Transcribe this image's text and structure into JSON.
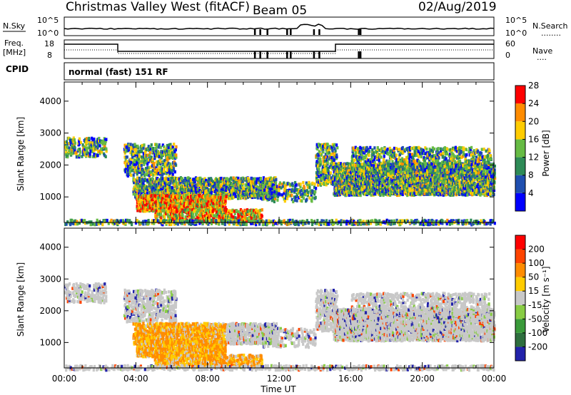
{
  "header": {
    "title": "Christmas Valley West (fitACF)",
    "beam": "Beam 05",
    "date": "02/Aug/2019"
  },
  "top_panel": {
    "left_label": "N.Sky",
    "left_ticks": [
      "10^5",
      "10^0"
    ],
    "right_ticks": [
      "10^5",
      "10^0"
    ],
    "right_label": "N.Search",
    "right_legend": "........"
  },
  "freq_panel": {
    "left_label_1": "Freq.",
    "left_label_2": "[MHz]",
    "left_ticks": [
      "18",
      "8"
    ],
    "right_ticks": [
      "60",
      "0"
    ],
    "right_label": "Nave",
    "right_legend": "....",
    "cpid_label": "CPID",
    "cpid_text": "normal (fast) 151 RF"
  },
  "chart_data": [
    {
      "type": "heatmap",
      "name": "power",
      "ylabel": "Slant Range [km]",
      "yticks": [
        1000,
        2000,
        3000,
        4000
      ],
      "ylim": [
        200,
        4600
      ],
      "colorbar_label": "Power [dB]",
      "colorbar_ticks": [
        4,
        8,
        12,
        16,
        20,
        24,
        28
      ],
      "colorbar_colors": [
        "#0000ff",
        "#1f4fb0",
        "#2e8b57",
        "#66bb44",
        "#ffcc00",
        "#ff8c00",
        "#ff0000"
      ],
      "xticks": [
        "00:00",
        "04:00",
        "08:00",
        "12:00",
        "16:00",
        "20:00",
        "00:00"
      ]
    },
    {
      "type": "heatmap",
      "name": "velocity",
      "ylabel": "Slant Range [km]",
      "yticks": [
        1000,
        2000,
        3000,
        4000
      ],
      "ylim": [
        200,
        4600
      ],
      "colorbar_label": "Velocity [m s⁻¹]",
      "colorbar_ticks": [
        200,
        100,
        50,
        15,
        -15,
        -50,
        -100,
        -200
      ],
      "colorbar_colors": [
        "#2222aa",
        "#2e6e3e",
        "#3a9a3a",
        "#88cc44",
        "#c8c8c8",
        "#ffcc00",
        "#ff8c00",
        "#ff4400",
        "#ff0000"
      ],
      "xticks": [
        "00:00",
        "04:00",
        "08:00",
        "12:00",
        "16:00",
        "20:00",
        "00:00"
      ],
      "xlabel": "Time UT"
    }
  ]
}
